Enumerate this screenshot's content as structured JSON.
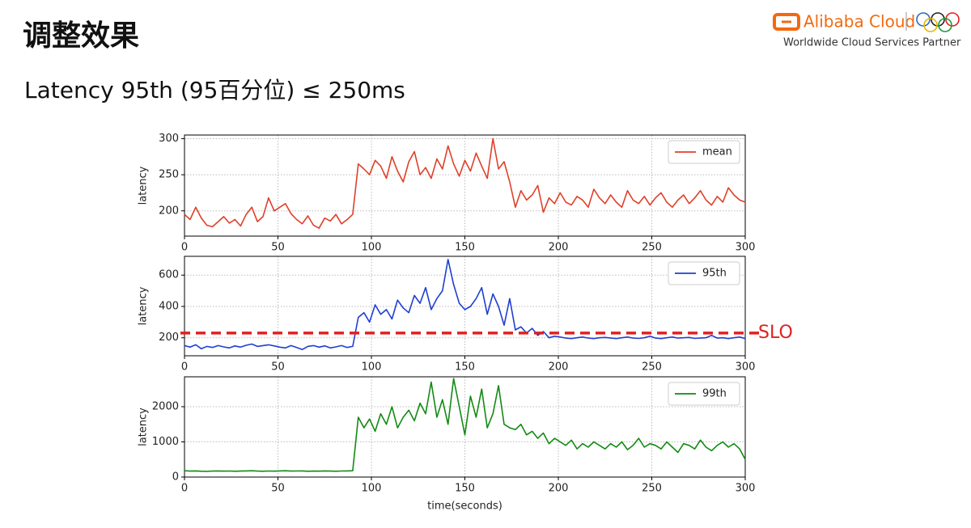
{
  "header": {
    "title": "调整效果",
    "subtitle": "Latency 95th (95百分位) ≤ 250ms",
    "brand": "Alibaba Cloud",
    "tagline": "Worldwide Cloud Services Partner"
  },
  "chart_data": [
    {
      "type": "line",
      "ylabel": "latency",
      "x": [
        0,
        3,
        6,
        9,
        12,
        15,
        18,
        21,
        24,
        27,
        30,
        33,
        36,
        39,
        42,
        45,
        48,
        51,
        54,
        57,
        60,
        63,
        66,
        69,
        72,
        75,
        78,
        81,
        84,
        87,
        90,
        93,
        96,
        99,
        102,
        105,
        108,
        111,
        114,
        117,
        120,
        123,
        126,
        129,
        132,
        135,
        138,
        141,
        144,
        147,
        150,
        153,
        156,
        159,
        162,
        165,
        168,
        171,
        174,
        177,
        180,
        183,
        186,
        189,
        192,
        195,
        198,
        201,
        204,
        207,
        210,
        213,
        216,
        219,
        222,
        225,
        228,
        231,
        234,
        237,
        240,
        243,
        246,
        249,
        252,
        255,
        258,
        261,
        264,
        267,
        270,
        273,
        276,
        279,
        282,
        285,
        288,
        291,
        294,
        297,
        300
      ],
      "series": [
        {
          "name": "mean",
          "color": "#e0402a",
          "values": [
            195,
            188,
            205,
            190,
            180,
            178,
            185,
            192,
            183,
            188,
            179,
            195,
            205,
            185,
            192,
            218,
            200,
            205,
            210,
            196,
            188,
            182,
            193,
            180,
            176,
            190,
            186,
            195,
            182,
            188,
            195,
            265,
            258,
            250,
            270,
            262,
            245,
            275,
            255,
            240,
            268,
            282,
            250,
            260,
            245,
            272,
            258,
            290,
            265,
            248,
            270,
            255,
            280,
            262,
            245,
            300,
            258,
            268,
            240,
            205,
            228,
            215,
            222,
            235,
            198,
            218,
            210,
            225,
            212,
            208,
            220,
            215,
            205,
            230,
            218,
            210,
            222,
            212,
            205,
            228,
            215,
            210,
            220,
            208,
            218,
            225,
            212,
            205,
            215,
            222,
            210,
            218,
            228,
            215,
            208,
            220,
            212,
            232,
            222,
            215,
            212
          ]
        }
      ],
      "xlim": [
        0,
        300
      ],
      "xticks": [
        0,
        50,
        100,
        150,
        200,
        250,
        300
      ],
      "ylim": [
        165,
        305
      ],
      "yticks": [
        200,
        250,
        300
      ],
      "grid": true,
      "legend": "upper right"
    },
    {
      "type": "line",
      "ylabel": "latency",
      "x": [
        0,
        3,
        6,
        9,
        12,
        15,
        18,
        21,
        24,
        27,
        30,
        33,
        36,
        39,
        42,
        45,
        48,
        51,
        54,
        57,
        60,
        63,
        66,
        69,
        72,
        75,
        78,
        81,
        84,
        87,
        90,
        93,
        96,
        99,
        102,
        105,
        108,
        111,
        114,
        117,
        120,
        123,
        126,
        129,
        132,
        135,
        138,
        141,
        144,
        147,
        150,
        153,
        156,
        159,
        162,
        165,
        168,
        171,
        174,
        177,
        180,
        183,
        186,
        189,
        192,
        195,
        198,
        201,
        204,
        207,
        210,
        213,
        216,
        219,
        222,
        225,
        228,
        231,
        234,
        237,
        240,
        243,
        246,
        249,
        252,
        255,
        258,
        261,
        264,
        267,
        270,
        273,
        276,
        279,
        282,
        285,
        288,
        291,
        294,
        297,
        300
      ],
      "series": [
        {
          "name": "95th",
          "color": "#1f3fd0",
          "values": [
            150,
            140,
            155,
            130,
            145,
            138,
            150,
            142,
            135,
            148,
            140,
            152,
            160,
            145,
            150,
            155,
            148,
            140,
            135,
            150,
            138,
            125,
            145,
            150,
            140,
            148,
            135,
            142,
            150,
            138,
            145,
            330,
            360,
            300,
            410,
            350,
            380,
            320,
            440,
            390,
            360,
            470,
            420,
            520,
            380,
            450,
            500,
            700,
            540,
            420,
            380,
            400,
            450,
            520,
            350,
            480,
            400,
            280,
            450,
            250,
            270,
            230,
            260,
            215,
            240,
            200,
            210,
            205,
            198,
            195,
            200,
            205,
            198,
            195,
            200,
            202,
            198,
            195,
            200,
            205,
            198,
            196,
            200,
            210,
            198,
            195,
            200,
            205,
            198,
            200,
            202,
            196,
            198,
            200,
            215,
            198,
            200,
            195,
            200,
            205,
            195
          ]
        }
      ],
      "hlines": [
        {
          "value": 230,
          "label": "SLO",
          "color": "#e02020"
        }
      ],
      "xlim": [
        0,
        300
      ],
      "xticks": [
        0,
        50,
        100,
        150,
        200,
        250,
        300
      ],
      "ylim": [
        85,
        720
      ],
      "yticks": [
        200,
        400,
        600
      ],
      "grid": true,
      "legend": "upper right"
    },
    {
      "type": "line",
      "ylabel": "latency",
      "xlabel": "time(seconds)",
      "x": [
        0,
        3,
        6,
        9,
        12,
        15,
        18,
        21,
        24,
        27,
        30,
        33,
        36,
        39,
        42,
        45,
        48,
        51,
        54,
        57,
        60,
        63,
        66,
        69,
        72,
        75,
        78,
        81,
        84,
        87,
        90,
        93,
        96,
        99,
        102,
        105,
        108,
        111,
        114,
        117,
        120,
        123,
        126,
        129,
        132,
        135,
        138,
        141,
        144,
        147,
        150,
        153,
        156,
        159,
        162,
        165,
        168,
        171,
        174,
        177,
        180,
        183,
        186,
        189,
        192,
        195,
        198,
        201,
        204,
        207,
        210,
        213,
        216,
        219,
        222,
        225,
        228,
        231,
        234,
        237,
        240,
        243,
        246,
        249,
        252,
        255,
        258,
        261,
        264,
        267,
        270,
        273,
        276,
        279,
        282,
        285,
        288,
        291,
        294,
        297,
        300
      ],
      "series": [
        {
          "name": "99th",
          "color": "#138a13",
          "values": [
            180,
            170,
            175,
            165,
            160,
            170,
            175,
            168,
            172,
            165,
            170,
            175,
            180,
            170,
            165,
            172,
            168,
            175,
            180,
            170,
            172,
            175,
            165,
            170,
            168,
            175,
            170,
            165,
            172,
            175,
            180,
            1700,
            1400,
            1650,
            1300,
            1800,
            1500,
            2000,
            1400,
            1700,
            1900,
            1600,
            2100,
            1800,
            2700,
            1700,
            2200,
            1500,
            2800,
            2000,
            1200,
            2300,
            1700,
            2500,
            1400,
            1800,
            2600,
            1500,
            1400,
            1350,
            1500,
            1200,
            1300,
            1100,
            1250,
            950,
            1100,
            1000,
            900,
            1050,
            800,
            950,
            850,
            1000,
            900,
            800,
            950,
            850,
            1000,
            780,
            900,
            1100,
            850,
            950,
            900,
            800,
            1000,
            850,
            700,
            950,
            900,
            800,
            1050,
            850,
            750,
            900,
            1000,
            850,
            950,
            800,
            500
          ]
        }
      ],
      "xlim": [
        0,
        300
      ],
      "xticks": [
        0,
        50,
        100,
        150,
        200,
        250,
        300
      ],
      "ylim": [
        0,
        2850
      ],
      "yticks": [
        0,
        1000,
        2000
      ],
      "grid": true,
      "legend": "upper right"
    }
  ]
}
